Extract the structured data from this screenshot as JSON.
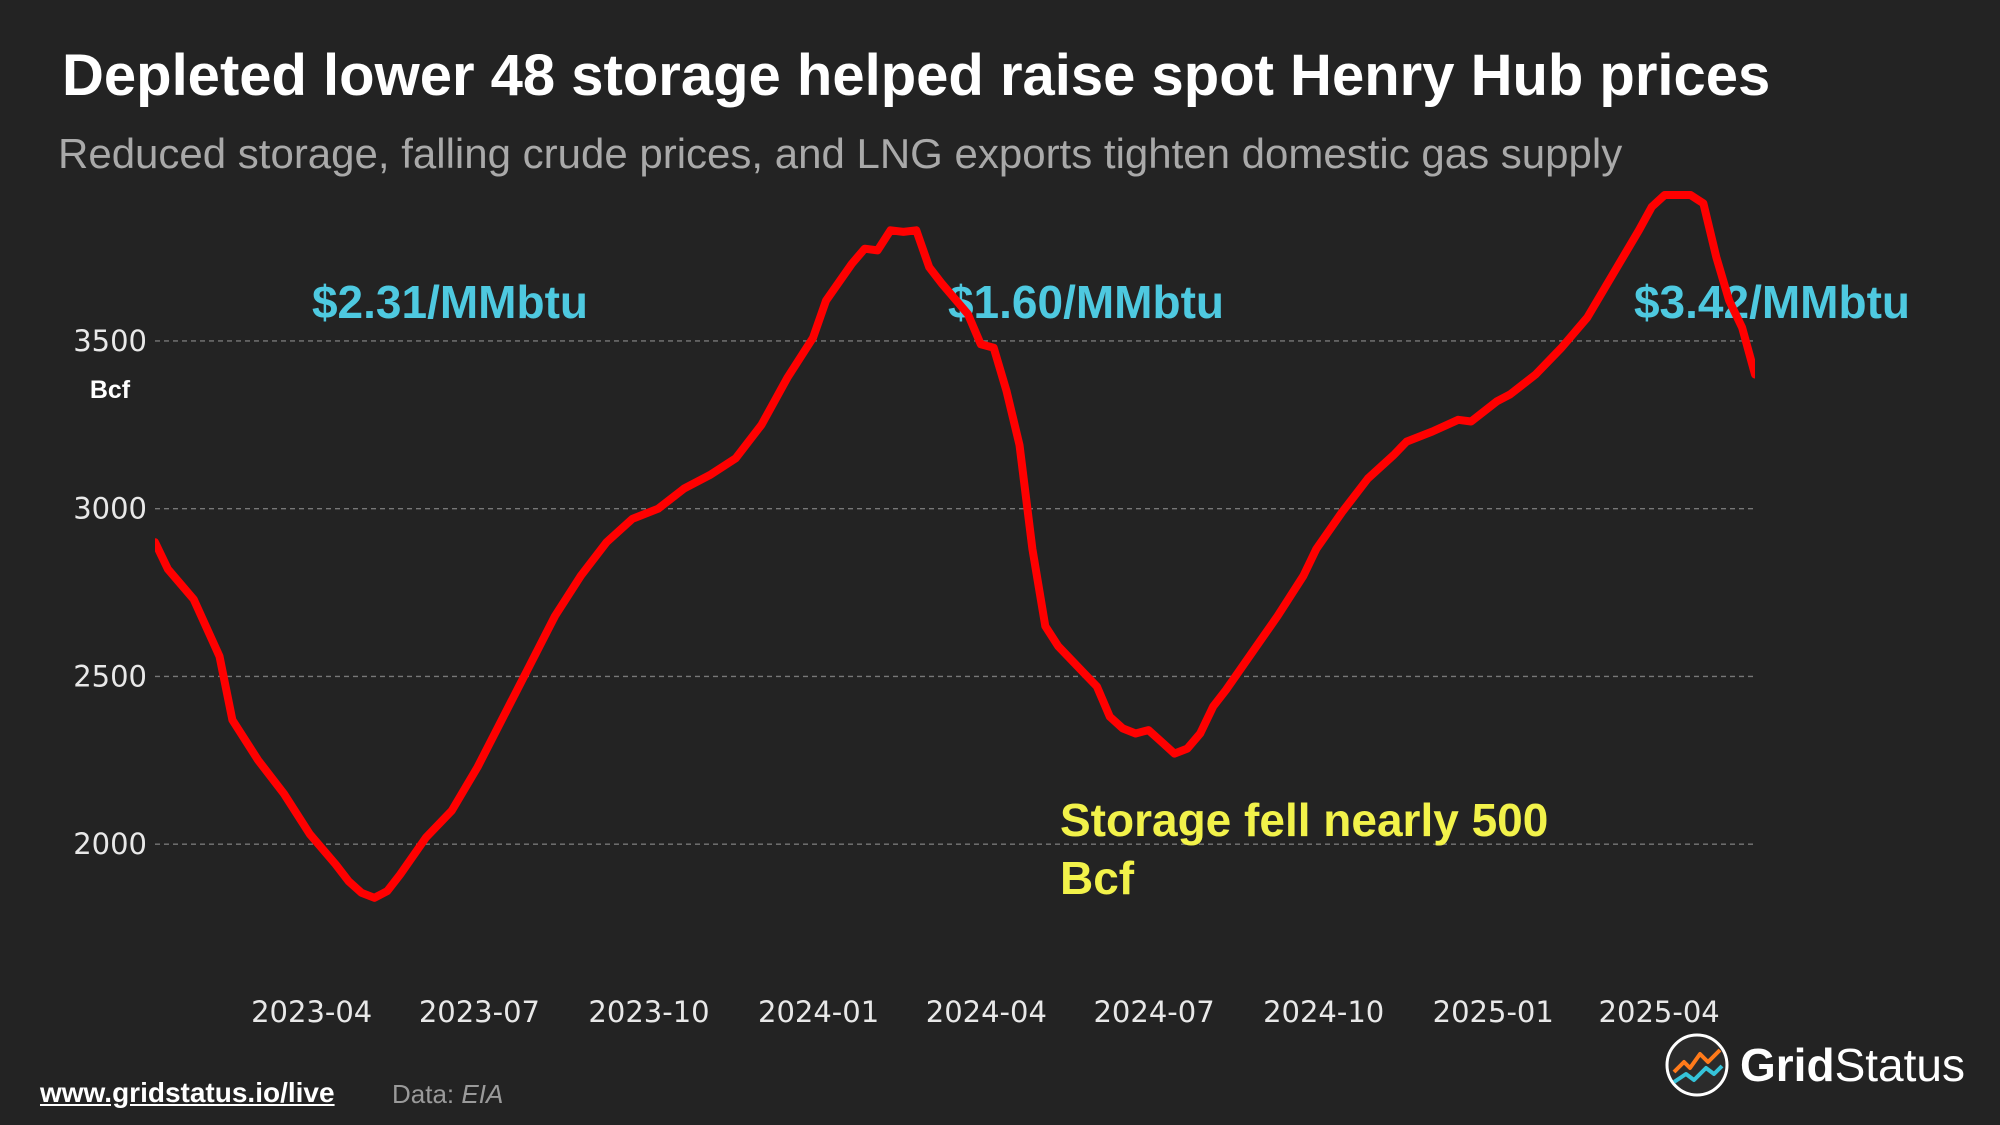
{
  "header": {
    "title": "Depleted lower 48 storage helped raise spot Henry Hub prices",
    "subtitle": "Reduced storage, falling crude prices, and LNG exports tighten domestic gas supply"
  },
  "footer": {
    "link": "www.gridstatus.io/live",
    "source_label": "Data:",
    "source_name": "EIA"
  },
  "brand": {
    "name_bold": "Grid",
    "name_regular": "Status"
  },
  "colors": {
    "background": "#232323",
    "line": "#ff0000",
    "price_annotation": "#4ec9e0",
    "callout": "#f2f24a",
    "grid": "#777777",
    "tick_text": "#e8e8e8"
  },
  "chart_data": {
    "type": "line",
    "ylabel": "Bcf",
    "xlabel": "",
    "ylim": [
      1610,
      3950
    ],
    "xlim": [
      "2023-01-06",
      "2025-05-23"
    ],
    "yticks": [
      2000,
      2500,
      3000,
      3500
    ],
    "xticks": [
      "2023-04",
      "2023-07",
      "2023-10",
      "2024-01",
      "2024-04",
      "2024-07",
      "2024-10",
      "2025-01",
      "2025-04"
    ],
    "grid": true,
    "series": [
      {
        "values": [
          [
            "2023-01-06",
            2900
          ],
          [
            "2023-01-13",
            2820
          ],
          [
            "2023-01-27",
            2730
          ],
          [
            "2023-02-10",
            2560
          ],
          [
            "2023-02-17",
            2370
          ],
          [
            "2023-03-03",
            2250
          ],
          [
            "2023-03-17",
            2150
          ],
          [
            "2023-03-31",
            2030
          ],
          [
            "2023-04-14",
            1940
          ],
          [
            "2023-04-21",
            1890
          ],
          [
            "2023-04-28",
            1855
          ],
          [
            "2023-05-05",
            1840
          ],
          [
            "2023-05-12",
            1860
          ],
          [
            "2023-05-19",
            1910
          ],
          [
            "2023-06-02",
            2020
          ],
          [
            "2023-06-16",
            2100
          ],
          [
            "2023-06-30",
            2230
          ],
          [
            "2023-07-14",
            2380
          ],
          [
            "2023-07-28",
            2530
          ],
          [
            "2023-08-11",
            2680
          ],
          [
            "2023-08-25",
            2800
          ],
          [
            "2023-09-08",
            2900
          ],
          [
            "2023-09-22",
            2970
          ],
          [
            "2023-10-06",
            3000
          ],
          [
            "2023-10-20",
            3060
          ],
          [
            "2023-11-03",
            3100
          ],
          [
            "2023-11-17",
            3150
          ],
          [
            "2023-12-01",
            3250
          ],
          [
            "2023-12-15",
            3390
          ],
          [
            "2023-12-29",
            3510
          ],
          [
            "2024-01-05",
            3620
          ],
          [
            "2024-01-19",
            3730
          ],
          [
            "2024-01-26",
            3775
          ],
          [
            "2024-02-02",
            3770
          ],
          [
            "2024-02-09",
            3830
          ],
          [
            "2024-02-16",
            3825
          ],
          [
            "2024-02-23",
            3830
          ],
          [
            "2024-03-01",
            3720
          ],
          [
            "2024-03-08",
            3670
          ],
          [
            "2024-03-22",
            3580
          ],
          [
            "2024-03-29",
            3490
          ],
          [
            "2024-04-05",
            3480
          ],
          [
            "2024-04-12",
            3350
          ],
          [
            "2024-04-19",
            3190
          ],
          [
            "2024-04-26",
            2880
          ],
          [
            "2024-05-03",
            2650
          ],
          [
            "2024-05-10",
            2590
          ],
          [
            "2024-05-24",
            2510
          ],
          [
            "2024-05-31",
            2470
          ],
          [
            "2024-06-07",
            2380
          ],
          [
            "2024-06-14",
            2345
          ],
          [
            "2024-06-21",
            2330
          ],
          [
            "2024-06-28",
            2340
          ],
          [
            "2024-07-05",
            2305
          ],
          [
            "2024-07-12",
            2270
          ],
          [
            "2024-07-19",
            2285
          ],
          [
            "2024-07-26",
            2330
          ],
          [
            "2024-08-02",
            2410
          ],
          [
            "2024-08-09",
            2460
          ],
          [
            "2024-08-23",
            2570
          ],
          [
            "2024-09-06",
            2680
          ],
          [
            "2024-09-20",
            2800
          ],
          [
            "2024-09-27",
            2880
          ],
          [
            "2024-10-11",
            2990
          ],
          [
            "2024-10-25",
            3090
          ],
          [
            "2024-11-08",
            3160
          ],
          [
            "2024-11-15",
            3200
          ],
          [
            "2024-11-29",
            3230
          ],
          [
            "2024-12-13",
            3265
          ],
          [
            "2024-12-20",
            3260
          ],
          [
            "2025-01-03",
            3320
          ],
          [
            "2025-01-10",
            3340
          ],
          [
            "2025-01-24",
            3400
          ],
          [
            "2025-02-07",
            3480
          ],
          [
            "2025-02-21",
            3570
          ],
          [
            "2025-03-07",
            3700
          ],
          [
            "2025-03-21",
            3830
          ],
          [
            "2025-03-28",
            3900
          ],
          [
            "2025-04-04",
            3935
          ],
          [
            "2025-04-11",
            3935
          ],
          [
            "2025-04-18",
            3935
          ],
          [
            "2025-04-25",
            3910
          ],
          [
            "2025-05-02",
            3750
          ],
          [
            "2025-05-09",
            3620
          ],
          [
            "2025-05-16",
            3540
          ],
          [
            "2025-05-23",
            3400
          ]
        ]
      }
    ],
    "annotations": [
      {
        "text": "$2.31/MMbtu",
        "kind": "price"
      },
      {
        "text": "$1.60/MMbtu",
        "kind": "price"
      },
      {
        "text": "$3.42/MMbtu",
        "kind": "price"
      },
      {
        "text": "Storage fell nearly 500",
        "kind": "callout"
      },
      {
        "text": "Bcf",
        "kind": "callout"
      }
    ]
  }
}
